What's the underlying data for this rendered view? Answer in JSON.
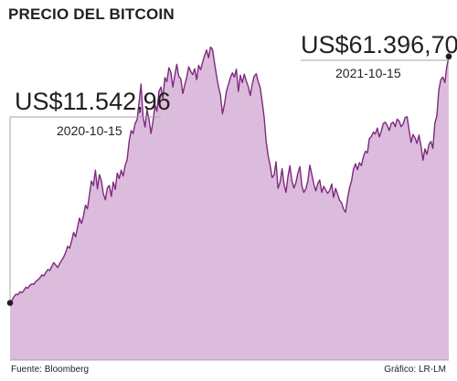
{
  "header": {
    "title": "PRECIO DEL BITCOIN"
  },
  "footer": {
    "source": "Fuente: Bloomberg",
    "credit": "Gráfico: LR-LM"
  },
  "colors": {
    "fill": "#dcbcdc",
    "line": "#7d2a7d",
    "border": "#a5a5a5",
    "text": "#231f20",
    "marker": "#231f20"
  },
  "chart_data": {
    "type": "area",
    "title": "PRECIO DEL BITCOIN",
    "xlabel": "",
    "ylabel": "",
    "x_start": "2020-10-15",
    "x_end": "2021-10-15",
    "ylim": [
      0,
      68000
    ],
    "grid": false,
    "values": [
      11543,
      12100,
      12800,
      13300,
      13200,
      13800,
      13600,
      14100,
      14700,
      14500,
      15100,
      15400,
      15300,
      15900,
      16200,
      16600,
      17200,
      17000,
      17700,
      18300,
      18100,
      18900,
      19700,
      19200,
      18700,
      19500,
      20200,
      20800,
      21700,
      23000,
      22600,
      24000,
      25800,
      24900,
      26800,
      28700,
      27600,
      29200,
      31300,
      30600,
      33400,
      36200,
      35300,
      38400,
      34600,
      37500,
      36300,
      33600,
      32400,
      34800,
      35300,
      33100,
      36000,
      34500,
      37800,
      36700,
      38400,
      37200,
      39400,
      40500,
      44200,
      46400,
      45800,
      47800,
      48600,
      52100,
      55800,
      49200,
      47100,
      50600,
      48700,
      45800,
      48300,
      51600,
      50300,
      54300,
      55200,
      52900,
      57100,
      56300,
      59100,
      58200,
      55200,
      57600,
      59800,
      57400,
      56900,
      53900,
      55600,
      57200,
      59300,
      58400,
      57700,
      58900,
      56700,
      59600,
      58700,
      60200,
      61600,
      62700,
      61100,
      63300,
      62800,
      60100,
      57500,
      55200,
      53600,
      49800,
      51700,
      54300,
      55700,
      57100,
      58100,
      57200,
      58800,
      54300,
      57600,
      56100,
      57800,
      56400,
      55300,
      53500,
      55800,
      57400,
      57900,
      56300,
      55100,
      52300,
      49100,
      44200,
      41300,
      39400,
      36900,
      37400,
      40100,
      34700,
      35900,
      38700,
      35600,
      33900,
      37200,
      39300,
      36200,
      34800,
      35900,
      37800,
      39100,
      35200,
      33900,
      34600,
      36200,
      39400,
      37600,
      35600,
      34200,
      35700,
      36400,
      33900,
      35100,
      34400,
      33700,
      34300,
      35600,
      32900,
      34700,
      33500,
      32300,
      31800,
      30500,
      29900,
      32600,
      34800,
      36200,
      38600,
      39700,
      38500,
      39900,
      39300,
      41100,
      42200,
      41900,
      44800,
      45200,
      46100,
      45700,
      46900,
      45100,
      46300,
      47800,
      48100,
      47400,
      46400,
      47800,
      48100,
      47200,
      48700,
      48300,
      47200,
      47700,
      49000,
      49200,
      46500,
      44000,
      45600,
      44900,
      43800,
      45500,
      43300,
      40400,
      42700,
      41600,
      43600,
      44200,
      42800,
      47900,
      49400,
      54600,
      56700,
      57200,
      56100,
      59200,
      61397
    ],
    "annotations": [
      {
        "value_label": "US$11.542,96",
        "date": "2020-10-15",
        "value": 11542.96
      },
      {
        "value_label": "US$61.396,70",
        "date": "2021-10-15",
        "value": 61396.7
      }
    ]
  }
}
